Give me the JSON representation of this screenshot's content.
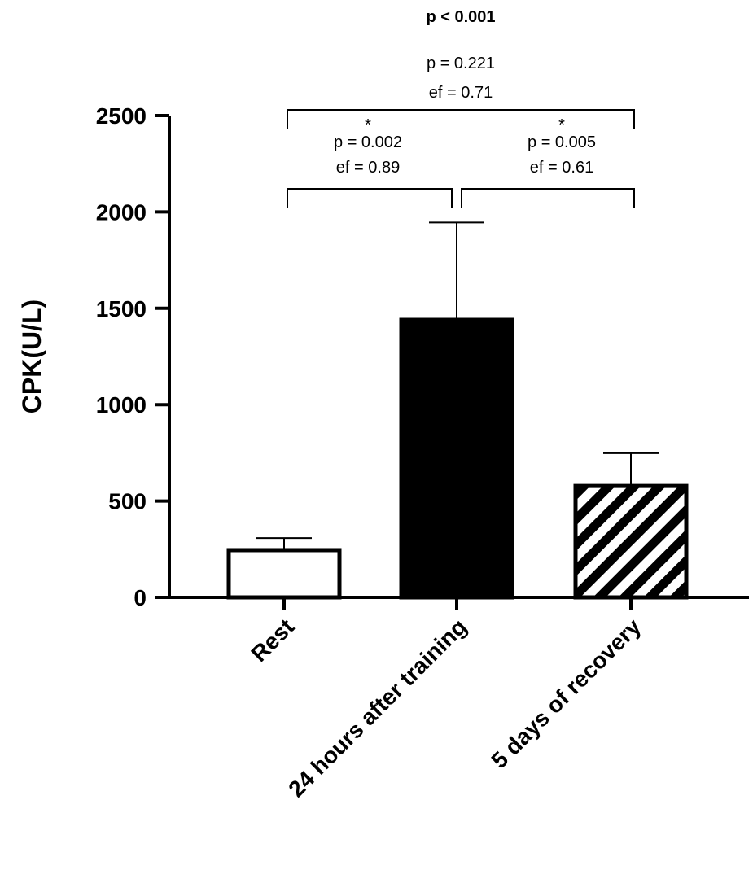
{
  "chart_data": {
    "type": "bar",
    "title": "",
    "xlabel": "",
    "ylabel": "CPK(U/L)",
    "ylim": [
      0,
      2500
    ],
    "yticks": [
      0,
      500,
      1000,
      1500,
      2000,
      2500
    ],
    "grid": false,
    "categories": [
      "Rest",
      "24 hours after training",
      "5 days of recovery"
    ],
    "values": [
      245,
      1440,
      578
    ],
    "error_upper": [
      63,
      505,
      170
    ],
    "fills": [
      "white",
      "solid-black",
      "diagonal-hatch"
    ],
    "annotations": {
      "overall": "p < 0.001",
      "rest_vs_recovery": {
        "p": "p = 0.221",
        "ef": "ef = 0.71"
      },
      "rest_vs_24h": {
        "star": "*",
        "p": "p = 0.002",
        "ef": "ef = 0.89"
      },
      "h24_vs_recovery": {
        "star": "*",
        "p": "p = 0.005",
        "ef": "ef = 0.61"
      }
    }
  },
  "colors": {
    "bar_outline": "#000000",
    "bar_solid": "#000000",
    "background": "#ffffff",
    "hatch": "#000000"
  }
}
